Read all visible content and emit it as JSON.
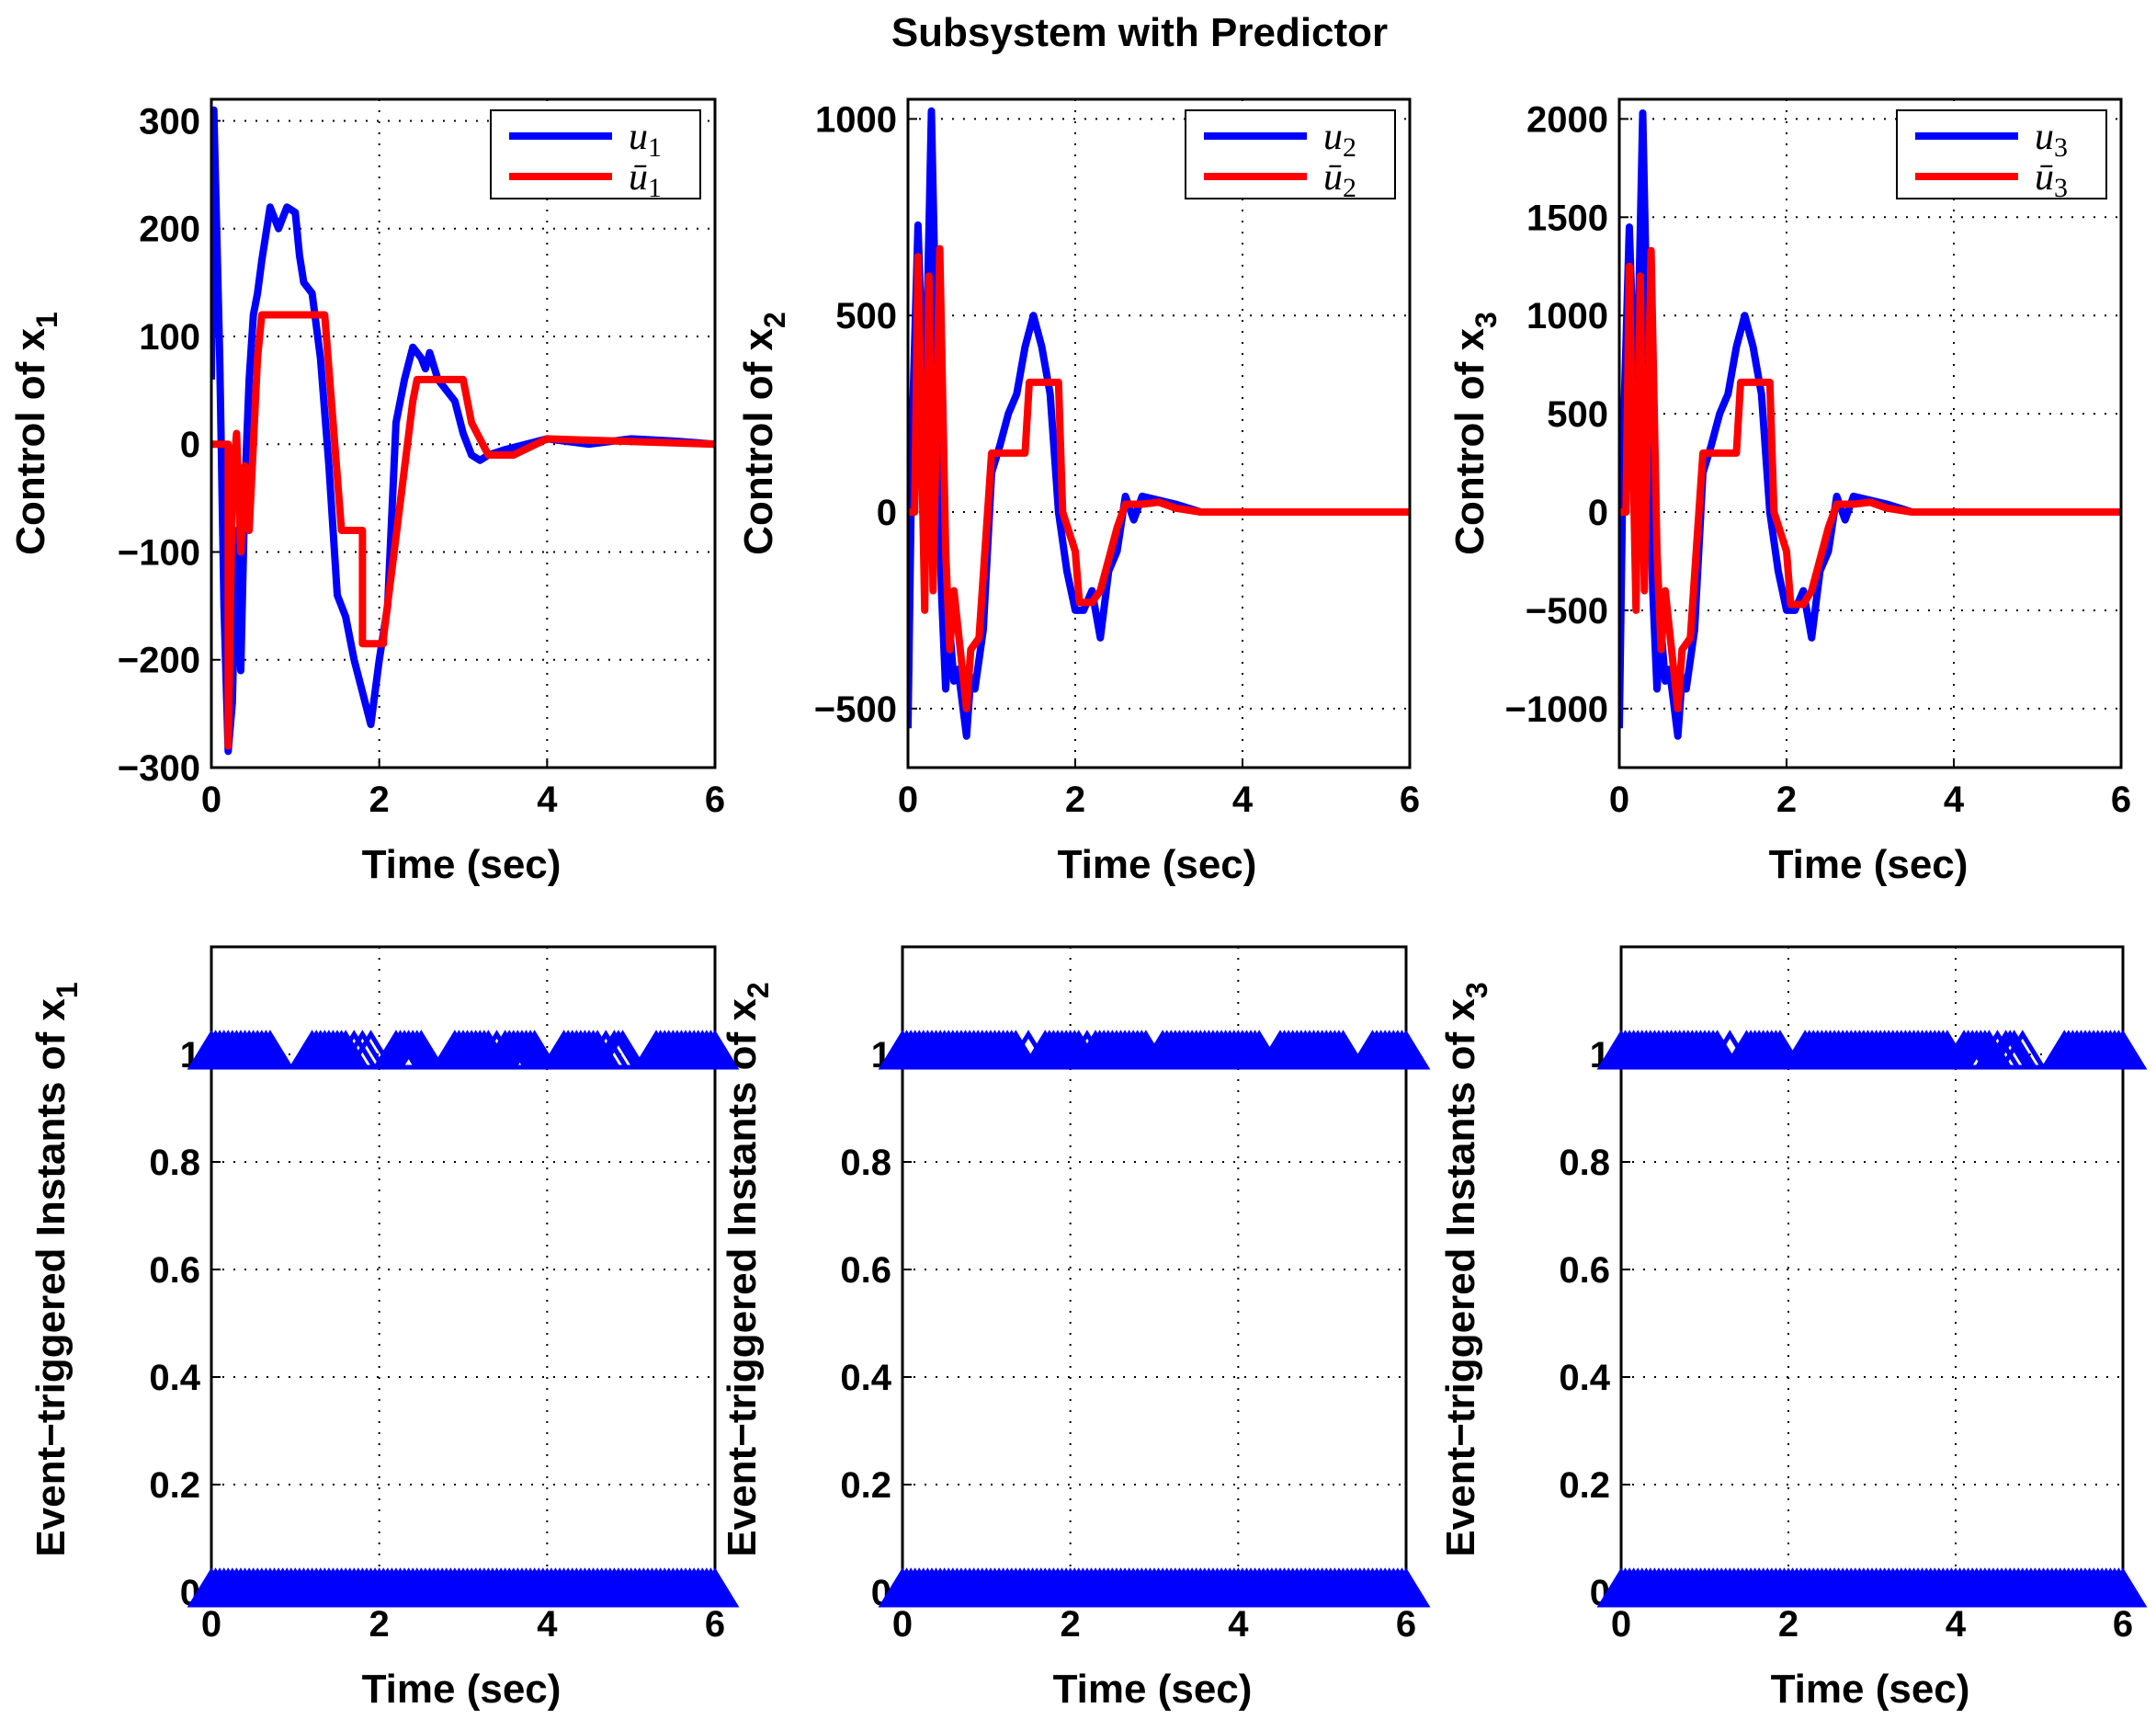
{
  "figure": {
    "title": "Subsystem with Predictor"
  },
  "colors": {
    "u": "#0000ff",
    "ubar": "#ff0000",
    "marker": "#0000ff"
  },
  "chart_data": [
    {
      "type": "line",
      "xlabel": "Time (sec)",
      "ylabel": "Control of x1",
      "xlim": [
        0,
        6
      ],
      "ylim": [
        -300,
        320
      ],
      "xticks": [
        "0",
        "2",
        "4",
        "6"
      ],
      "yticks": [
        "300",
        "200",
        "100",
        "0",
        "−100",
        "−200",
        "−300"
      ],
      "grid": true,
      "legend_position": "top-right",
      "series": [
        {
          "name": "u1",
          "x": [
            0,
            0.03,
            0.1,
            0.15,
            0.2,
            0.25,
            0.3,
            0.35,
            0.4,
            0.45,
            0.5,
            0.55,
            0.6,
            0.7,
            0.8,
            0.9,
            1.0,
            1.05,
            1.1,
            1.2,
            1.3,
            1.4,
            1.5,
            1.6,
            1.7,
            1.8,
            1.9,
            2.0,
            2.1,
            2.2,
            2.3,
            2.4,
            2.5,
            2.55,
            2.6,
            2.7,
            2.8,
            2.9,
            3.0,
            3.1,
            3.2,
            3.3,
            3.5,
            4.0,
            4.5,
            5.0,
            5.5,
            6.0
          ],
          "y": [
            60,
            310,
            80,
            -150,
            -285,
            -240,
            -80,
            -210,
            -40,
            60,
            120,
            140,
            170,
            220,
            200,
            220,
            215,
            175,
            150,
            140,
            80,
            -20,
            -140,
            -160,
            -200,
            -230,
            -260,
            -200,
            -150,
            20,
            60,
            90,
            80,
            70,
            85,
            60,
            50,
            40,
            10,
            -10,
            -15,
            -10,
            -5,
            5,
            0,
            5,
            3,
            0
          ]
        },
        {
          "name": "ū1",
          "x": [
            0,
            0.2,
            0.2,
            0.25,
            0.3,
            0.35,
            0.4,
            0.45,
            0.5,
            0.55,
            0.6,
            1.35,
            1.55,
            1.8,
            1.8,
            2.05,
            2.05,
            2.4,
            2.45,
            3.0,
            3.1,
            3.3,
            3.6,
            4.0,
            6.0
          ],
          "y": [
            0,
            0,
            -280,
            -40,
            10,
            -100,
            -20,
            -80,
            0,
            80,
            120,
            120,
            -80,
            -80,
            -185,
            -185,
            -180,
            40,
            60,
            60,
            20,
            -10,
            -10,
            5,
            0
          ]
        }
      ]
    },
    {
      "type": "line",
      "xlabel": "Time (sec)",
      "ylabel": "Control of x2",
      "xlim": [
        0,
        6
      ],
      "ylim": [
        -650,
        1050
      ],
      "xticks": [
        "0",
        "2",
        "4",
        "6"
      ],
      "yticks": [
        "1000",
        "500",
        "0",
        "−500"
      ],
      "grid": true,
      "legend_position": "top-right",
      "series": [
        {
          "name": "u2",
          "x": [
            0,
            0.05,
            0.12,
            0.2,
            0.28,
            0.35,
            0.4,
            0.45,
            0.5,
            0.55,
            0.6,
            0.7,
            0.75,
            0.8,
            0.9,
            1.0,
            1.1,
            1.2,
            1.3,
            1.4,
            1.5,
            1.6,
            1.7,
            1.8,
            1.9,
            2.0,
            2.1,
            2.2,
            2.3,
            2.4,
            2.5,
            2.6,
            2.7,
            2.8,
            3.0,
            3.2,
            3.5,
            4.0,
            6.0
          ],
          "y": [
            -550,
            200,
            730,
            200,
            1020,
            300,
            -200,
            -450,
            -300,
            -430,
            -400,
            -570,
            -420,
            -450,
            -300,
            100,
            170,
            250,
            300,
            420,
            500,
            420,
            300,
            0,
            -150,
            -250,
            -250,
            -200,
            -320,
            -150,
            -100,
            40,
            -20,
            40,
            30,
            20,
            0,
            0,
            0
          ]
        },
        {
          "name": "ū2",
          "x": [
            0,
            0.08,
            0.12,
            0.2,
            0.25,
            0.3,
            0.38,
            0.45,
            0.5,
            0.55,
            0.6,
            0.7,
            0.75,
            0.85,
            1.0,
            1.1,
            1.2,
            1.4,
            1.45,
            1.8,
            1.85,
            2.0,
            2.05,
            2.2,
            2.3,
            2.5,
            2.6,
            2.8,
            3.0,
            3.2,
            3.5,
            6.0
          ],
          "y": [
            0,
            0,
            650,
            -250,
            600,
            -200,
            670,
            -100,
            -350,
            -200,
            -300,
            -500,
            -350,
            -320,
            150,
            150,
            150,
            150,
            330,
            330,
            0,
            -100,
            -230,
            -230,
            -200,
            -40,
            20,
            20,
            25,
            10,
            0,
            0
          ]
        }
      ]
    },
    {
      "type": "line",
      "xlabel": "Time (sec)",
      "ylabel": "Control of x3",
      "xlim": [
        0,
        6
      ],
      "ylim": [
        -1300,
        2100
      ],
      "xticks": [
        "0",
        "2",
        "4",
        "6"
      ],
      "yticks": [
        "2000",
        "1500",
        "1000",
        "500",
        "0",
        "−500",
        "−1000"
      ],
      "grid": true,
      "legend_position": "top-right",
      "series": [
        {
          "name": "u3",
          "x": [
            0,
            0.05,
            0.12,
            0.2,
            0.28,
            0.35,
            0.4,
            0.45,
            0.5,
            0.55,
            0.6,
            0.7,
            0.75,
            0.8,
            0.9,
            1.0,
            1.1,
            1.2,
            1.3,
            1.4,
            1.5,
            1.6,
            1.7,
            1.8,
            1.9,
            2.0,
            2.1,
            2.2,
            2.3,
            2.4,
            2.5,
            2.6,
            2.7,
            2.8,
            3.0,
            3.2,
            3.5,
            4.0,
            6.0
          ],
          "y": [
            -1100,
            400,
            1450,
            400,
            2030,
            600,
            -400,
            -900,
            -600,
            -860,
            -800,
            -1140,
            -840,
            -900,
            -600,
            200,
            340,
            500,
            600,
            840,
            1000,
            840,
            600,
            0,
            -300,
            -500,
            -500,
            -400,
            -640,
            -300,
            -200,
            80,
            -40,
            80,
            60,
            40,
            0,
            0,
            0
          ]
        },
        {
          "name": "ū3",
          "x": [
            0,
            0.08,
            0.12,
            0.2,
            0.25,
            0.3,
            0.38,
            0.45,
            0.5,
            0.55,
            0.6,
            0.7,
            0.75,
            0.85,
            1.0,
            1.1,
            1.2,
            1.4,
            1.45,
            1.8,
            1.85,
            2.0,
            2.05,
            2.2,
            2.3,
            2.5,
            2.6,
            2.8,
            3.0,
            3.2,
            3.5,
            6.0
          ],
          "y": [
            0,
            0,
            1250,
            -500,
            1200,
            -400,
            1330,
            -200,
            -700,
            -400,
            -600,
            -1000,
            -700,
            -640,
            300,
            300,
            300,
            300,
            660,
            660,
            0,
            -200,
            -470,
            -470,
            -400,
            -80,
            40,
            40,
            50,
            20,
            0,
            0
          ]
        }
      ]
    },
    {
      "type": "scatter",
      "xlabel": "Time (sec)",
      "ylabel": "Event−triggered Instants of x1",
      "xlim": [
        0,
        6
      ],
      "ylim": [
        0,
        1.2
      ],
      "xticks": [
        "0",
        "2",
        "4",
        "6"
      ],
      "yticks": [
        "1",
        "0.8",
        "0.6",
        "0.4",
        "0.2",
        "0"
      ],
      "grid": true,
      "series": [
        {
          "marker": "triangle",
          "y": 1,
          "x": [
            0.0,
            0.05,
            0.1,
            0.15,
            0.2,
            0.25,
            0.3,
            0.35,
            0.4,
            0.45,
            0.5,
            0.55,
            0.6,
            0.65,
            0.7,
            1.2,
            1.25,
            1.3,
            1.35,
            1.4,
            1.45,
            1.5,
            1.55,
            1.6,
            1.7,
            1.8,
            1.9,
            2.2,
            2.25,
            2.3,
            2.35,
            2.4,
            2.45,
            2.5,
            2.9,
            2.95,
            3.0,
            3.05,
            3.1,
            3.15,
            3.2,
            3.25,
            3.3,
            3.4,
            3.5,
            3.55,
            3.6,
            3.65,
            3.7,
            3.75,
            3.8,
            3.85,
            4.2,
            4.25,
            4.3,
            4.35,
            4.4,
            4.45,
            4.5,
            4.55,
            4.6,
            4.7,
            4.8,
            4.85,
            4.9,
            5.3,
            5.35,
            5.4,
            5.45,
            5.5,
            5.55,
            5.6,
            5.65,
            5.7,
            5.75,
            5.8,
            5.85,
            5.9,
            5.95,
            6.0
          ]
        },
        {
          "marker": "triangle",
          "y": 0,
          "x_start": 0,
          "x_end": 6,
          "step": 0.05
        }
      ]
    },
    {
      "type": "scatter",
      "xlabel": "Time (sec)",
      "ylabel": "Event−triggered Instants of x2",
      "xlim": [
        0,
        6
      ],
      "ylim": [
        0,
        1.2
      ],
      "xticks": [
        "0",
        "2",
        "4",
        "6"
      ],
      "yticks": [
        "1",
        "0.8",
        "0.6",
        "0.4",
        "0.2",
        "0"
      ],
      "grid": true,
      "series": [
        {
          "marker": "triangle",
          "y": 1,
          "x": [
            0.0,
            0.05,
            0.1,
            0.15,
            0.2,
            0.25,
            0.3,
            0.35,
            0.4,
            0.45,
            0.5,
            0.55,
            0.6,
            0.65,
            0.7,
            0.75,
            0.8,
            0.85,
            0.9,
            0.95,
            1.0,
            1.05,
            1.1,
            1.15,
            1.2,
            1.25,
            1.3,
            1.35,
            1.5,
            1.7,
            1.75,
            1.8,
            1.85,
            1.9,
            1.95,
            2.0,
            2.05,
            2.1,
            2.2,
            2.3,
            2.35,
            2.4,
            2.45,
            2.5,
            2.55,
            2.6,
            2.65,
            2.7,
            2.75,
            2.8,
            2.85,
            2.9,
            3.1,
            3.15,
            3.2,
            3.25,
            3.3,
            3.35,
            3.4,
            3.45,
            3.5,
            3.55,
            3.6,
            3.65,
            3.7,
            3.75,
            3.8,
            3.85,
            3.9,
            3.95,
            4.0,
            4.05,
            4.1,
            4.15,
            4.2,
            4.25,
            4.5,
            4.55,
            4.6,
            4.65,
            4.7,
            4.75,
            4.8,
            4.85,
            4.9,
            4.95,
            5.0,
            5.05,
            5.1,
            5.15,
            5.2,
            5.25,
            5.6,
            5.65,
            5.7,
            5.75,
            5.8,
            5.85,
            5.9,
            5.95,
            6.0
          ]
        },
        {
          "marker": "triangle",
          "y": 0,
          "x_start": 0,
          "x_end": 6,
          "step": 0.05
        }
      ]
    },
    {
      "type": "scatter",
      "xlabel": "Time (sec)",
      "ylabel": "Event−triggered Instants of x3",
      "xlim": [
        0,
        6
      ],
      "ylim": [
        0,
        1.2
      ],
      "xticks": [
        "0",
        "2",
        "4",
        "6"
      ],
      "yticks": [
        "1",
        "0.8",
        "0.6",
        "0.4",
        "0.2",
        "0"
      ],
      "grid": true,
      "series": [
        {
          "marker": "triangle",
          "y": 1,
          "x": [
            0.0,
            0.05,
            0.1,
            0.15,
            0.2,
            0.25,
            0.3,
            0.35,
            0.4,
            0.45,
            0.5,
            0.55,
            0.6,
            0.65,
            0.7,
            0.75,
            0.8,
            0.85,
            0.9,
            0.95,
            1.0,
            1.05,
            1.1,
            1.15,
            1.3,
            1.5,
            1.55,
            1.6,
            1.65,
            1.7,
            1.75,
            1.8,
            1.85,
            1.9,
            2.2,
            2.25,
            2.3,
            2.35,
            2.4,
            2.45,
            2.5,
            2.55,
            2.6,
            2.65,
            2.7,
            2.75,
            2.8,
            2.85,
            2.9,
            2.95,
            3.0,
            3.05,
            3.1,
            3.15,
            3.2,
            3.25,
            3.3,
            3.35,
            3.4,
            3.45,
            3.5,
            3.55,
            3.6,
            3.65,
            3.7,
            3.75,
            3.8,
            3.85,
            3.9,
            4.1,
            4.15,
            4.2,
            4.25,
            4.3,
            4.35,
            4.4,
            4.5,
            4.6,
            4.65,
            4.7,
            4.8,
            5.3,
            5.35,
            5.4,
            5.45,
            5.5,
            5.55,
            5.6,
            5.65,
            5.7,
            5.75,
            5.8,
            5.85,
            5.9,
            5.95,
            6.0
          ]
        },
        {
          "marker": "triangle",
          "y": 0,
          "x_start": 0,
          "x_end": 6,
          "step": 0.05
        }
      ]
    }
  ]
}
